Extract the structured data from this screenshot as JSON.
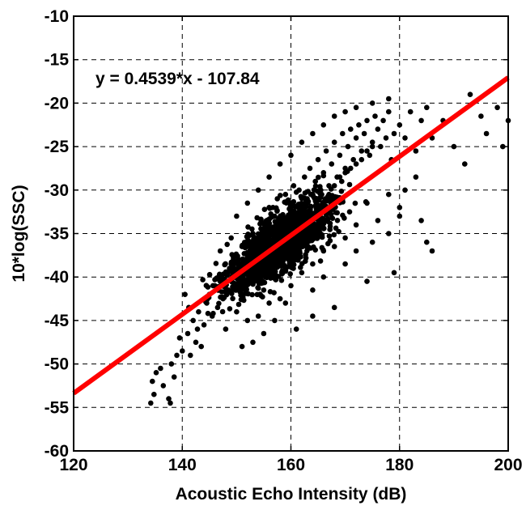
{
  "chart_data": {
    "type": "scatter",
    "title": "",
    "xlabel": "Acoustic Echo Intensity (dB)",
    "ylabel": "10*log(SSC)",
    "xlim": [
      120,
      200
    ],
    "ylim": [
      -60,
      -10
    ],
    "xticks": [
      120,
      140,
      160,
      180,
      200
    ],
    "yticks": [
      -60,
      -55,
      -50,
      -45,
      -40,
      -35,
      -30,
      -25,
      -20,
      -15,
      -10
    ],
    "grid": true,
    "grid_style": "dashed",
    "legend": "none",
    "annotation": "y = 0.4539*x - 107.84",
    "point_color": "#000000",
    "fit_line": {
      "slope": 0.4539,
      "intercept": -107.84,
      "color": "#ff0000"
    },
    "series": [
      {
        "values": [
          [
            134.5,
            -52.0
          ],
          [
            134.8,
            -53.5
          ],
          [
            135.2,
            -51.0
          ],
          [
            134.2,
            -54.5
          ],
          [
            136.0,
            -50.5
          ],
          [
            137.5,
            -54.0
          ],
          [
            137.8,
            -54.5
          ],
          [
            136.5,
            -52.5
          ],
          [
            138.0,
            -50.0
          ],
          [
            139.0,
            -49.0
          ],
          [
            138.5,
            -51.5
          ],
          [
            140.0,
            -48.5
          ],
          [
            139.5,
            -47.0
          ],
          [
            141.0,
            -46.5
          ],
          [
            141.5,
            -49.0
          ],
          [
            142.0,
            -45.0
          ],
          [
            142.5,
            -47.5
          ],
          [
            143.0,
            -44.0
          ],
          [
            140.5,
            -42.0
          ],
          [
            141.2,
            -43.5
          ],
          [
            142.8,
            -46.0
          ],
          [
            143.5,
            -48.0
          ],
          [
            144.0,
            -45.5
          ],
          [
            144.5,
            -43.0
          ],
          [
            145.0,
            -42.0
          ],
          [
            145.5,
            -44.5
          ],
          [
            146.0,
            -41.0
          ],
          [
            146.5,
            -43.5
          ],
          [
            147.0,
            -40.5
          ],
          [
            147.5,
            -42.5
          ],
          [
            148.0,
            -39.5
          ],
          [
            148.5,
            -41.5
          ],
          [
            149.0,
            -38.5
          ],
          [
            149.5,
            -40.0
          ],
          [
            150.0,
            -37.5
          ],
          [
            150.5,
            -39.5
          ],
          [
            151.0,
            -36.5
          ],
          [
            151.5,
            -38.5
          ],
          [
            152.0,
            -40.5
          ],
          [
            152.5,
            -37.0
          ],
          [
            153.0,
            -35.0
          ],
          [
            153.5,
            -38.0
          ],
          [
            154.0,
            -36.0
          ],
          [
            154.5,
            -33.5
          ],
          [
            155.0,
            -37.5
          ],
          [
            155.5,
            -34.5
          ],
          [
            156.0,
            -32.0
          ],
          [
            156.5,
            -36.0
          ],
          [
            157.0,
            -33.0
          ],
          [
            157.5,
            -31.0
          ],
          [
            158.0,
            -35.5
          ],
          [
            158.5,
            -34.0
          ],
          [
            159.0,
            -30.5
          ],
          [
            159.5,
            -33.5
          ],
          [
            160.0,
            -31.5
          ],
          [
            160.5,
            -29.5
          ],
          [
            161.0,
            -33.0
          ],
          [
            161.5,
            -30.0
          ],
          [
            162.0,
            -32.5
          ],
          [
            162.5,
            -28.5
          ],
          [
            163.0,
            -31.0
          ],
          [
            163.5,
            -27.5
          ],
          [
            164.0,
            -30.5
          ],
          [
            164.5,
            -29.0
          ],
          [
            165.0,
            -26.5
          ],
          [
            165.5,
            -30.0
          ],
          [
            166.0,
            -28.0
          ],
          [
            166.5,
            -25.5
          ],
          [
            167.0,
            -29.5
          ],
          [
            167.5,
            -27.0
          ],
          [
            168.0,
            -24.5
          ],
          [
            168.5,
            -28.5
          ],
          [
            169.0,
            -26.0
          ],
          [
            169.5,
            -23.5
          ],
          [
            170.0,
            -27.5
          ],
          [
            170.5,
            -25.0
          ],
          [
            171.0,
            -23.0
          ],
          [
            171.5,
            -26.5
          ],
          [
            172.0,
            -24.0
          ],
          [
            172.5,
            -22.5
          ],
          [
            173.0,
            -25.5
          ],
          [
            173.5,
            -23.5
          ],
          [
            174.0,
            -22.0
          ],
          [
            174.5,
            -26.0
          ],
          [
            175.0,
            -24.5
          ],
          [
            175.5,
            -21.5
          ],
          [
            176.0,
            -23.0
          ],
          [
            176.5,
            -25.0
          ],
          [
            177.0,
            -22.0
          ],
          [
            177.5,
            -24.0
          ],
          [
            178.0,
            -21.0
          ],
          [
            178.5,
            -26.5
          ],
          [
            179.0,
            -23.5
          ],
          [
            180.0,
            -22.5
          ],
          [
            181.0,
            -24.0
          ],
          [
            182.0,
            -21.0
          ],
          [
            183.0,
            -25.5
          ],
          [
            184.0,
            -22.0
          ],
          [
            185.0,
            -20.5
          ],
          [
            186.0,
            -24.0
          ],
          [
            188.0,
            -22.0
          ],
          [
            190.0,
            -25.0
          ],
          [
            192.0,
            -27.0
          ],
          [
            193.0,
            -19.0
          ],
          [
            195.0,
            -21.5
          ],
          [
            198.0,
            -20.5
          ],
          [
            200.0,
            -22.0
          ],
          [
            199.0,
            -25.0
          ],
          [
            196.0,
            -23.5
          ],
          [
            183.0,
            -28.5
          ],
          [
            181.0,
            -30.0
          ],
          [
            180.0,
            -32.0
          ],
          [
            178.0,
            -30.5
          ],
          [
            176.0,
            -33.5
          ],
          [
            174.0,
            -31.5
          ],
          [
            172.0,
            -34.0
          ],
          [
            170.0,
            -35.5
          ],
          [
            168.0,
            -36.5
          ],
          [
            166.0,
            -37.0
          ],
          [
            164.0,
            -38.5
          ],
          [
            162.0,
            -39.5
          ],
          [
            160.0,
            -41.0
          ],
          [
            158.0,
            -42.5
          ],
          [
            156.0,
            -43.0
          ],
          [
            154.0,
            -44.5
          ],
          [
            152.0,
            -45.0
          ],
          [
            150.0,
            -44.0
          ],
          [
            148.0,
            -46.0
          ],
          [
            153.0,
            -47.5
          ],
          [
            155.0,
            -46.5
          ],
          [
            157.0,
            -45.0
          ],
          [
            151.0,
            -48.0
          ],
          [
            164.0,
            -41.5
          ],
          [
            166.0,
            -40.0
          ],
          [
            170.0,
            -38.5
          ],
          [
            172.0,
            -37.0
          ],
          [
            175.0,
            -36.0
          ],
          [
            178.0,
            -35.0
          ],
          [
            180.0,
            -33.0
          ],
          [
            184.0,
            -33.5
          ],
          [
            185.0,
            -36.0
          ],
          [
            186.0,
            -37.0
          ],
          [
            179.0,
            -39.5
          ],
          [
            174.0,
            -40.5
          ],
          [
            168.0,
            -43.5
          ],
          [
            164.0,
            -44.5
          ],
          [
            161.0,
            -46.0
          ],
          [
            159.0,
            -43.0
          ],
          [
            157.0,
            -40.0
          ],
          [
            155.0,
            -41.5
          ],
          [
            153.0,
            -39.0
          ],
          [
            151.0,
            -42.0
          ],
          [
            149.0,
            -35.5
          ],
          [
            147.0,
            -37.0
          ],
          [
            150.0,
            -33.0
          ],
          [
            152.0,
            -31.5
          ],
          [
            154.0,
            -30.0
          ],
          [
            156.0,
            -28.5
          ],
          [
            158.0,
            -27.0
          ],
          [
            160.0,
            -26.0
          ],
          [
            162.0,
            -24.5
          ],
          [
            164.0,
            -23.5
          ],
          [
            166.0,
            -22.5
          ],
          [
            168.0,
            -21.5
          ],
          [
            170.0,
            -21.0
          ],
          [
            172.0,
            -20.5
          ],
          [
            175.0,
            -20.0
          ],
          [
            178.0,
            -19.5
          ],
          [
            155.0,
            -35.0
          ],
          [
            156.0,
            -36.5
          ],
          [
            157.0,
            -37.5
          ],
          [
            158.0,
            -38.0
          ],
          [
            159.0,
            -36.0
          ],
          [
            160.0,
            -35.0
          ],
          [
            161.0,
            -36.5
          ],
          [
            162.0,
            -35.5
          ],
          [
            163.0,
            -34.5
          ],
          [
            164.0,
            -33.5
          ],
          [
            165.0,
            -32.5
          ],
          [
            166.0,
            -31.5
          ],
          [
            167.0,
            -30.5
          ],
          [
            168.0,
            -29.5
          ],
          [
            169.0,
            -28.5
          ],
          [
            170.0,
            -28.0
          ],
          [
            171.0,
            -27.5
          ],
          [
            172.0,
            -27.0
          ],
          [
            173.0,
            -26.5
          ],
          [
            174.0,
            -25.5
          ],
          [
            175.0,
            -25.0
          ]
        ]
      }
    ]
  }
}
